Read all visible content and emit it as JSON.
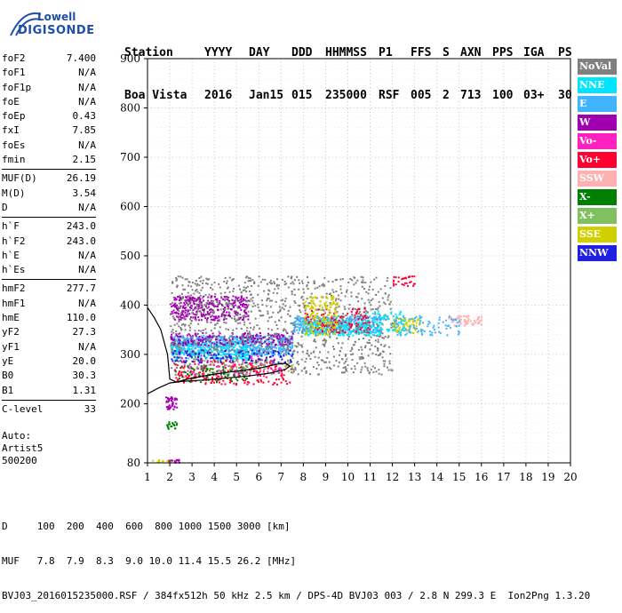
{
  "logo": {
    "line1": "Lowell",
    "line2": "DIGISONDE"
  },
  "header": {
    "labels": [
      "Station",
      "YYYY",
      "DAY",
      "DDD",
      "HHMMSS",
      "P1",
      "FFS",
      "S",
      "AXN",
      "PPS",
      "IGA",
      "PS"
    ],
    "values": [
      "Boa Vista",
      "2016",
      "Jan15",
      "015",
      "235000",
      "RSF",
      "005",
      "2",
      "713",
      "100",
      "03+",
      "30"
    ]
  },
  "parameters": [
    [
      {
        "label": "foF2",
        "value": "7.400"
      },
      {
        "label": "foF1",
        "value": "N/A"
      },
      {
        "label": "foF1p",
        "value": "N/A"
      },
      {
        "label": "foE",
        "value": "N/A"
      },
      {
        "label": "foEp",
        "value": "0.43"
      },
      {
        "label": "fxI",
        "value": "7.85"
      },
      {
        "label": "foEs",
        "value": "N/A"
      },
      {
        "label": "fmin",
        "value": "2.15"
      }
    ],
    [
      {
        "label": "MUF(D)",
        "value": "26.19"
      },
      {
        "label": "M(D)",
        "value": "3.54"
      },
      {
        "label": "D",
        "value": "N/A"
      }
    ],
    [
      {
        "label": "h`F",
        "value": "243.0"
      },
      {
        "label": "h`F2",
        "value": "243.0"
      },
      {
        "label": "h`E",
        "value": "N/A"
      },
      {
        "label": "h`Es",
        "value": "N/A"
      }
    ],
    [
      {
        "label": "hmF2",
        "value": "277.7"
      },
      {
        "label": "hmF1",
        "value": "N/A"
      },
      {
        "label": "hmE",
        "value": "110.0"
      },
      {
        "label": "yF2",
        "value": "27.3"
      },
      {
        "label": "yF1",
        "value": "N/A"
      },
      {
        "label": "yE",
        "value": "20.0"
      },
      {
        "label": "B0",
        "value": "30.3"
      },
      {
        "label": "B1",
        "value": "1.31"
      }
    ],
    [
      {
        "label": "C-level",
        "value": "33"
      }
    ]
  ],
  "auto": {
    "line1": "Auto:",
    "line2": "Artist5",
    "line3": "500200"
  },
  "footer": {
    "line1": "D     100  200  400  600  800 1000 1500 3000 [km]",
    "line2": "MUF   7.8  7.9  8.3  9.0 10.0 11.4 15.5 26.2 [MHz]",
    "line3": "BVJ03_2016015235000.RSF / 384fx512h 50 kHz 2.5 km / DPS-4D BVJ03 003 / 2.8 N 299.3 E  Ion2Png 1.3.20"
  },
  "legend": [
    {
      "name": "NoVal",
      "color": "#808080",
      "text": "#ffffff"
    },
    {
      "name": "NNE",
      "color": "#00e5ff",
      "text": "#ffffff"
    },
    {
      "name": "E",
      "color": "#40b4ff",
      "text": "#ffffff"
    },
    {
      "name": "W",
      "color": "#a000b0",
      "text": "#ffffff"
    },
    {
      "name": "Vo-",
      "color": "#ff20c0",
      "text": "#ffffff"
    },
    {
      "name": "Vo+",
      "color": "#ff0030",
      "text": "#ffffff"
    },
    {
      "name": "SSW",
      "color": "#ffb0b0",
      "text": "#ffffff"
    },
    {
      "name": "X-",
      "color": "#008000",
      "text": "#ffffff"
    },
    {
      "name": "X+",
      "color": "#80c060",
      "text": "#ffffff"
    },
    {
      "name": "SSE",
      "color": "#d0d000",
      "text": "#ffffff"
    },
    {
      "name": "NNW",
      "color": "#2020e0",
      "text": "#ffffff"
    }
  ],
  "chart_data": {
    "type": "scatter",
    "xlim": [
      1,
      20
    ],
    "ylim": [
      80,
      900
    ],
    "x_ticks": [
      "1",
      "2",
      "3",
      "4",
      "5",
      "6",
      "7",
      "8",
      "9",
      "10",
      "11",
      "12",
      "13",
      "14",
      "15",
      "16",
      "17",
      "18",
      "19",
      "20"
    ],
    "y_ticks": [
      "80",
      "200",
      "300",
      "400",
      "500",
      "600",
      "700",
      "800",
      "900"
    ],
    "grid": true,
    "legend_position": "right",
    "profile_curve": [
      [
        1.0,
        395
      ],
      [
        1.3,
        375
      ],
      [
        1.6,
        350
      ],
      [
        1.9,
        300
      ],
      [
        2.0,
        250
      ],
      [
        2.3,
        244
      ],
      [
        3.0,
        252
      ],
      [
        4.0,
        260
      ],
      [
        5.0,
        266
      ],
      [
        6.0,
        272
      ],
      [
        6.8,
        280
      ],
      [
        7.2,
        282
      ],
      [
        7.4,
        276
      ],
      [
        7.2,
        270
      ],
      [
        6.5,
        262
      ],
      [
        5.5,
        256
      ],
      [
        4.5,
        252
      ],
      [
        3.5,
        248
      ],
      [
        2.5,
        245
      ],
      [
        2.0,
        242
      ],
      [
        1.5,
        232
      ],
      [
        1.0,
        220
      ]
    ],
    "point_clusters": [
      {
        "series": "E",
        "x": [
          2.0,
          7.5
        ],
        "y": [
          300,
          340
        ],
        "n": 700
      },
      {
        "series": "E",
        "x": [
          7.5,
          11.5
        ],
        "y": [
          345,
          380
        ],
        "n": 400
      },
      {
        "series": "NNE",
        "x": [
          2.0,
          5.5
        ],
        "y": [
          290,
          330
        ],
        "n": 260
      },
      {
        "series": "NNE",
        "x": [
          8.0,
          11.0
        ],
        "y": [
          340,
          370
        ],
        "n": 200
      },
      {
        "series": "W",
        "x": [
          2.0,
          5.5
        ],
        "y": [
          370,
          420
        ],
        "n": 350
      },
      {
        "series": "W",
        "x": [
          2.0,
          7.5
        ],
        "y": [
          320,
          345
        ],
        "n": 220
      },
      {
        "series": "NoVal",
        "x": [
          2.0,
          12.0
        ],
        "y": [
          260,
          460
        ],
        "n": 1100
      },
      {
        "series": "Vo+",
        "x": [
          2.2,
          7.5
        ],
        "y": [
          240,
          290
        ],
        "n": 200
      },
      {
        "series": "Vo+",
        "x": [
          8.0,
          11.0
        ],
        "y": [
          345,
          395
        ],
        "n": 110
      },
      {
        "series": "Vo-",
        "x": [
          2.5,
          7.0
        ],
        "y": [
          255,
          300
        ],
        "n": 90
      },
      {
        "series": "X-",
        "x": [
          2.2,
          5.5
        ],
        "y": [
          245,
          280
        ],
        "n": 70
      },
      {
        "series": "X+",
        "x": [
          3.0,
          7.5
        ],
        "y": [
          260,
          295
        ],
        "n": 60
      },
      {
        "series": "SSE",
        "x": [
          8.0,
          9.5
        ],
        "y": [
          340,
          420
        ],
        "n": 160
      },
      {
        "series": "SSE",
        "x": [
          12.0,
          13.2
        ],
        "y": [
          345,
          375
        ],
        "n": 80
      },
      {
        "series": "SSW",
        "x": [
          14.5,
          16.0
        ],
        "y": [
          360,
          380
        ],
        "n": 60
      },
      {
        "series": "NNW",
        "x": [
          2.0,
          7.5
        ],
        "y": [
          285,
          310
        ],
        "n": 120
      },
      {
        "series": "E",
        "x": [
          12.0,
          15.0
        ],
        "y": [
          340,
          380
        ],
        "n": 100
      },
      {
        "series": "NNE",
        "x": [
          10.5,
          12.5
        ],
        "y": [
          340,
          390
        ],
        "n": 80
      },
      {
        "series": "Vo+",
        "x": [
          12.0,
          13.0
        ],
        "y": [
          440,
          460
        ],
        "n": 30
      },
      {
        "series": "W",
        "x": [
          1.8,
          2.3
        ],
        "y": [
          190,
          215
        ],
        "n": 40
      },
      {
        "series": "X-",
        "x": [
          1.8,
          2.3
        ],
        "y": [
          150,
          165
        ],
        "n": 20
      },
      {
        "series": "SSE",
        "x": [
          1.2,
          2.0
        ],
        "y": [
          82,
          88
        ],
        "n": 15
      },
      {
        "series": "W",
        "x": [
          1.9,
          2.5
        ],
        "y": [
          82,
          88
        ],
        "n": 15
      }
    ]
  }
}
